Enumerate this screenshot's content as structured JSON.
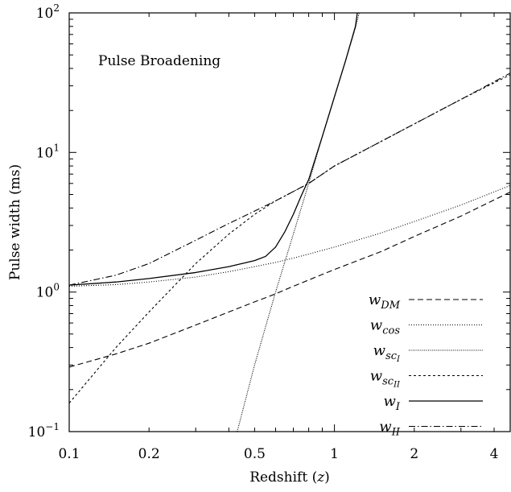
{
  "chart_data": {
    "type": "line",
    "title": "",
    "annotation": "Pulse Broadening",
    "xlabel": "Redshift (z)",
    "ylabel": "Pulse width (ms)",
    "x_scale": "log",
    "y_scale": "log",
    "xlim": [
      0.1,
      4.6
    ],
    "ylim": [
      0.1,
      100
    ],
    "x_ticks": [
      {
        "value": 0.1,
        "label": "0.1"
      },
      {
        "value": 0.2,
        "label": "0.2"
      },
      {
        "value": 0.5,
        "label": "0.5"
      },
      {
        "value": 1,
        "label": "1"
      },
      {
        "value": 2,
        "label": "2"
      },
      {
        "value": 4,
        "label": "4"
      }
    ],
    "y_ticks": [
      {
        "value": 0.1,
        "base": "10",
        "exp": "−1"
      },
      {
        "value": 1,
        "base": "10",
        "exp": "0"
      },
      {
        "value": 10,
        "base": "10",
        "exp": "1"
      },
      {
        "value": 100,
        "base": "10",
        "exp": "2"
      }
    ],
    "grid": false,
    "legend_position": "bottom-right",
    "series": [
      {
        "name": "w_DM",
        "legend_base": "w",
        "legend_sub": "DM",
        "dash": "dashed",
        "points": [
          [
            0.1,
            0.29
          ],
          [
            0.15,
            0.36
          ],
          [
            0.2,
            0.43
          ],
          [
            0.3,
            0.58
          ],
          [
            0.4,
            0.72
          ],
          [
            0.5,
            0.85
          ],
          [
            0.6,
            0.97
          ],
          [
            0.7,
            1.1
          ],
          [
            0.8,
            1.22
          ],
          [
            1,
            1.45
          ],
          [
            1.5,
            1.95
          ],
          [
            2,
            2.5
          ],
          [
            3,
            3.5
          ],
          [
            4.6,
            5.2
          ]
        ]
      },
      {
        "name": "w_cos",
        "legend_base": "w",
        "legend_sub": "cos",
        "dash": "dotted",
        "points": [
          [
            0.1,
            1.1
          ],
          [
            0.15,
            1.13
          ],
          [
            0.2,
            1.18
          ],
          [
            0.3,
            1.28
          ],
          [
            0.4,
            1.4
          ],
          [
            0.5,
            1.52
          ],
          [
            0.6,
            1.63
          ],
          [
            0.7,
            1.75
          ],
          [
            0.8,
            1.87
          ],
          [
            1,
            2.1
          ],
          [
            1.5,
            2.65
          ],
          [
            2,
            3.2
          ],
          [
            3,
            4.2
          ],
          [
            4.6,
            5.8
          ]
        ]
      },
      {
        "name": "w_scI",
        "legend_base": "w",
        "legend_sub": "sc",
        "legend_subsub": "I",
        "dash": "dotted-dense",
        "points": [
          [
            0.43,
            0.1
          ],
          [
            0.5,
            0.3
          ],
          [
            0.6,
            1.0
          ],
          [
            0.7,
            2.6
          ],
          [
            0.8,
            6.0
          ],
          [
            0.9,
            13
          ],
          [
            1.0,
            25
          ],
          [
            1.1,
            45
          ],
          [
            1.2,
            78
          ],
          [
            1.24,
            100
          ]
        ]
      },
      {
        "name": "w_scII",
        "legend_base": "w",
        "legend_sub": "sc",
        "legend_subsub": "II",
        "dash": "short-dashed",
        "points": [
          [
            0.1,
            0.16
          ],
          [
            0.15,
            0.4
          ],
          [
            0.2,
            0.72
          ],
          [
            0.3,
            1.6
          ],
          [
            0.4,
            2.6
          ],
          [
            0.5,
            3.6
          ],
          [
            0.6,
            4.5
          ],
          [
            0.8,
            6.0
          ],
          [
            1,
            8.0
          ],
          [
            1.5,
            12
          ],
          [
            2,
            16
          ],
          [
            3,
            24
          ],
          [
            4.6,
            36
          ]
        ]
      },
      {
        "name": "w_I",
        "legend_base": "w",
        "legend_sub": "I",
        "dash": "solid",
        "points": [
          [
            0.1,
            1.12
          ],
          [
            0.15,
            1.18
          ],
          [
            0.2,
            1.25
          ],
          [
            0.3,
            1.38
          ],
          [
            0.4,
            1.52
          ],
          [
            0.5,
            1.68
          ],
          [
            0.55,
            1.8
          ],
          [
            0.6,
            2.1
          ],
          [
            0.65,
            2.7
          ],
          [
            0.7,
            3.6
          ],
          [
            0.75,
            4.9
          ],
          [
            0.8,
            6.4
          ],
          [
            0.9,
            13
          ],
          [
            1.0,
            25
          ],
          [
            1.1,
            45
          ],
          [
            1.2,
            80
          ],
          [
            1.22,
            100
          ]
        ]
      },
      {
        "name": "w_II",
        "legend_base": "w",
        "legend_sub": "II",
        "dash": "dash-dot",
        "points": [
          [
            0.1,
            1.12
          ],
          [
            0.15,
            1.32
          ],
          [
            0.2,
            1.6
          ],
          [
            0.3,
            2.35
          ],
          [
            0.4,
            3.1
          ],
          [
            0.5,
            3.8
          ],
          [
            0.6,
            4.5
          ],
          [
            0.8,
            6.0
          ],
          [
            1,
            8.0
          ],
          [
            1.5,
            12
          ],
          [
            2,
            16
          ],
          [
            3,
            24
          ],
          [
            4.6,
            37
          ]
        ]
      }
    ]
  }
}
